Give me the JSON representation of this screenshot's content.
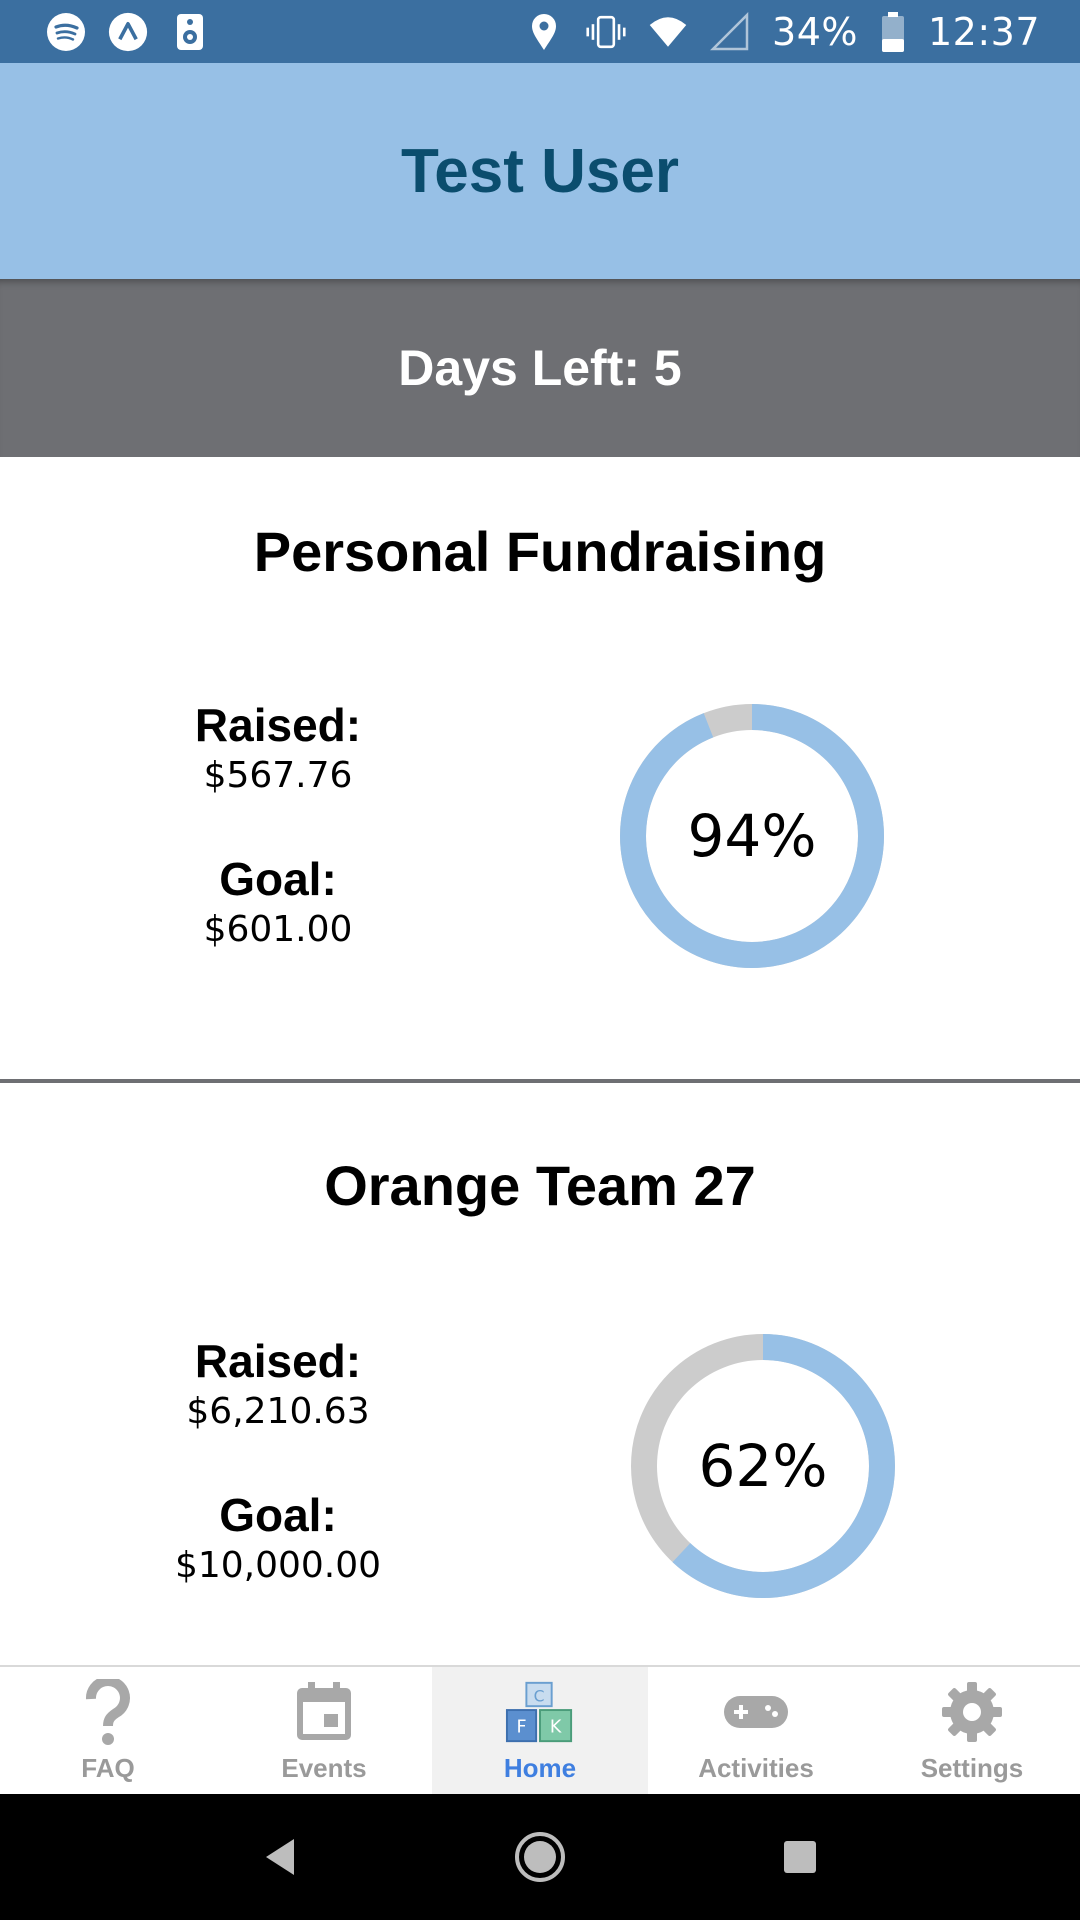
{
  "status_bar": {
    "battery_text": "34%",
    "time": "12:37",
    "left_icons": [
      "spotify-icon",
      "arc-launcher-icon",
      "speaker-icon"
    ],
    "right_icons": [
      "location-icon",
      "vibrate-icon",
      "wifi-icon",
      "cell-signal-icon",
      "battery-icon"
    ]
  },
  "header": {
    "title": "Test User"
  },
  "banner": {
    "days_left": "Days Left: 5"
  },
  "personal": {
    "title": "Personal Fundraising",
    "raised_label": "Raised:",
    "raised_value": "$567.76",
    "goal_label": "Goal:",
    "goal_value": "$601.00",
    "percent_label": "94%",
    "percent": 0.94
  },
  "team": {
    "title": "Orange Team 27",
    "raised_label": "Raised:",
    "raised_value": "$6,210.63",
    "goal_label": "Goal:",
    "goal_value": "$10,000.00",
    "percent_label": "62%",
    "percent": 0.62
  },
  "colors": {
    "status_bar": "#3b6fa0",
    "header_bg": "#97c0e6",
    "header_text": "#0b4d6e",
    "banner_bg": "#6e6f73",
    "ring_fill": "#97c0e6",
    "ring_track": "#cccccc",
    "nav_active": "#3f7fe0",
    "nav_inactive": "#9a9a9a"
  },
  "bottom_nav": {
    "items": [
      {
        "label": "FAQ",
        "icon": "question-icon"
      },
      {
        "label": "Events",
        "icon": "calendar-icon"
      },
      {
        "label": "Home",
        "icon": "blocks-icon"
      },
      {
        "label": "Activities",
        "icon": "gamepad-icon"
      },
      {
        "label": "Settings",
        "icon": "gear-icon"
      }
    ],
    "active": "Home"
  }
}
